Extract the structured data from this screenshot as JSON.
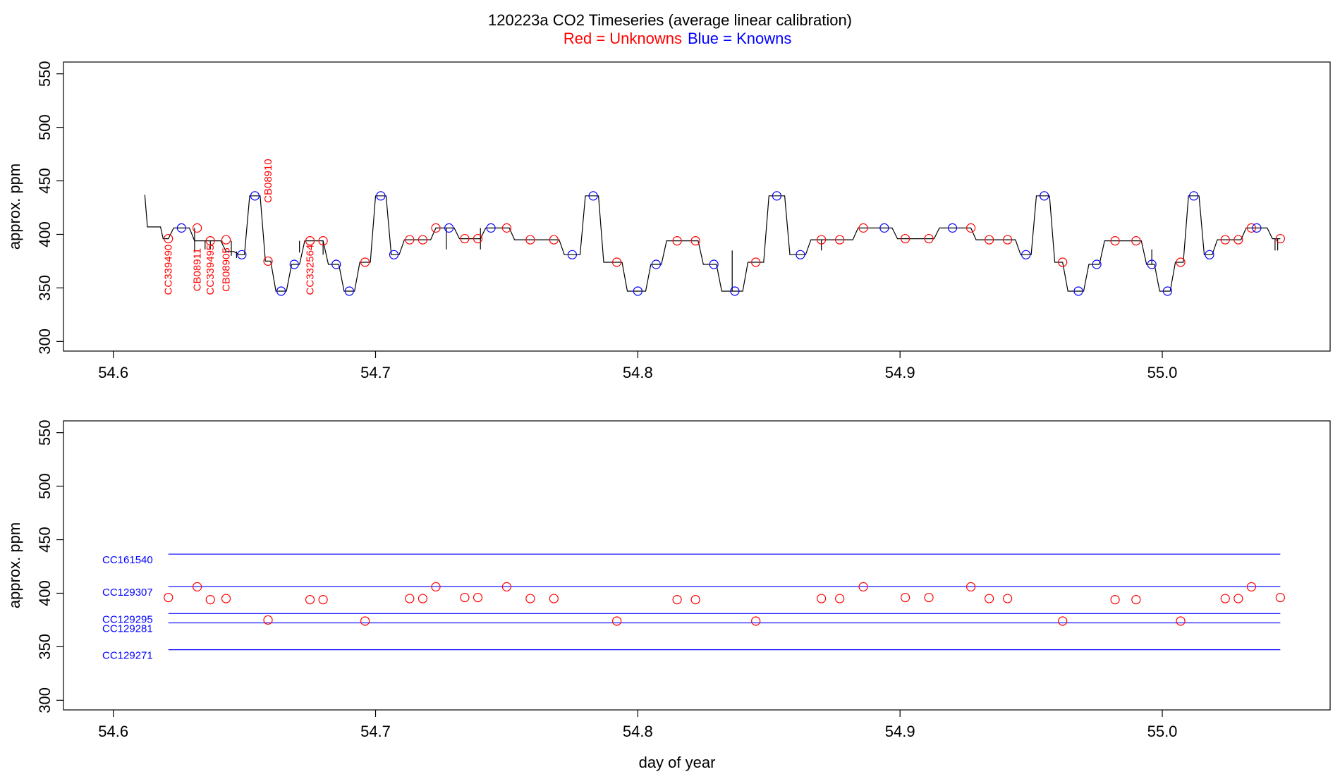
{
  "figure": {
    "title": "120223a   CO2 Timeseries (average linear calibration)",
    "subtitle_red": "Red = Unknowns",
    "subtitle_blue": "Blue = Knowns",
    "red_color": "#ff0000",
    "blue_color": "#0000ff"
  },
  "chart_data": [
    {
      "type": "line",
      "title": "",
      "xlabel": "",
      "ylabel": "approx. ppm",
      "xlim": [
        54.581,
        55.064
      ],
      "ylim": [
        291,
        561
      ],
      "x_ticks": [
        54.6,
        54.7,
        54.8,
        54.9,
        55.0
      ],
      "x_tick_labels": [
        "54.6",
        "54.7",
        "54.8",
        "54.9",
        "55.0"
      ],
      "y_ticks": [
        300,
        350,
        400,
        450,
        500,
        550
      ],
      "y_tick_labels": [
        "300",
        "350",
        "400",
        "450",
        "500",
        "550"
      ],
      "grid": false,
      "trace": {
        "name": "",
        "color": "#000000",
        "points": [
          [
            54.612,
            437
          ],
          [
            54.613,
            407
          ],
          [
            54.618,
            407
          ],
          [
            54.619,
            396
          ],
          [
            54.621,
            396
          ],
          [
            54.623,
            406
          ],
          [
            54.629,
            406
          ],
          [
            54.631,
            394
          ],
          [
            54.641,
            394
          ],
          [
            54.643,
            384
          ],
          [
            54.646,
            384
          ],
          [
            54.648,
            381
          ],
          [
            54.65,
            381
          ],
          [
            54.652,
            436
          ],
          [
            54.656,
            436
          ],
          [
            54.658,
            375
          ],
          [
            54.66,
            375
          ],
          [
            54.662,
            347
          ],
          [
            54.666,
            347
          ],
          [
            54.668,
            372
          ],
          [
            54.671,
            372
          ],
          [
            54.673,
            394
          ],
          [
            54.68,
            394
          ],
          [
            54.682,
            372
          ],
          [
            54.686,
            372
          ],
          [
            54.688,
            347
          ],
          [
            54.692,
            347
          ],
          [
            54.694,
            374
          ],
          [
            54.698,
            374
          ],
          [
            54.7,
            436
          ],
          [
            54.704,
            436
          ],
          [
            54.706,
            381
          ],
          [
            54.709,
            381
          ],
          [
            54.711,
            395
          ],
          [
            54.721,
            395
          ],
          [
            54.723,
            406
          ],
          [
            54.73,
            406
          ],
          [
            54.732,
            396
          ],
          [
            54.74,
            396
          ],
          [
            54.742,
            406
          ],
          [
            54.751,
            406
          ],
          [
            54.753,
            395
          ],
          [
            54.77,
            395
          ],
          [
            54.772,
            381
          ],
          [
            54.778,
            381
          ],
          [
            54.78,
            436
          ],
          [
            54.785,
            436
          ],
          [
            54.787,
            374
          ],
          [
            54.794,
            374
          ],
          [
            54.796,
            347
          ],
          [
            54.803,
            347
          ],
          [
            54.805,
            372
          ],
          [
            54.809,
            372
          ],
          [
            54.811,
            394
          ],
          [
            54.823,
            394
          ],
          [
            54.825,
            372
          ],
          [
            54.83,
            372
          ],
          [
            54.832,
            347
          ],
          [
            54.84,
            347
          ],
          [
            54.842,
            374
          ],
          [
            54.848,
            374
          ],
          [
            54.85,
            436
          ],
          [
            54.856,
            436
          ],
          [
            54.858,
            381
          ],
          [
            54.864,
            381
          ],
          [
            54.866,
            395
          ],
          [
            54.882,
            395
          ],
          [
            54.884,
            406
          ],
          [
            54.897,
            406
          ],
          [
            54.899,
            396
          ],
          [
            54.913,
            396
          ],
          [
            54.915,
            406
          ],
          [
            54.927,
            406
          ],
          [
            54.929,
            395
          ],
          [
            54.944,
            395
          ],
          [
            54.946,
            381
          ],
          [
            54.95,
            381
          ],
          [
            54.952,
            436
          ],
          [
            54.957,
            436
          ],
          [
            54.959,
            374
          ],
          [
            54.962,
            374
          ],
          [
            54.964,
            347
          ],
          [
            54.97,
            347
          ],
          [
            54.972,
            372
          ],
          [
            54.976,
            372
          ],
          [
            54.978,
            394
          ],
          [
            54.992,
            394
          ],
          [
            54.994,
            372
          ],
          [
            54.997,
            372
          ],
          [
            54.999,
            347
          ],
          [
            55.003,
            347
          ],
          [
            55.005,
            374
          ],
          [
            55.008,
            374
          ],
          [
            55.01,
            436
          ],
          [
            55.014,
            436
          ],
          [
            55.016,
            381
          ],
          [
            55.019,
            381
          ],
          [
            55.021,
            395
          ],
          [
            55.03,
            395
          ],
          [
            55.032,
            406
          ],
          [
            55.04,
            406
          ],
          [
            55.042,
            396
          ],
          [
            55.045,
            396
          ]
        ],
        "spikes": [
          [
            54.631,
            406,
            385
          ],
          [
            54.635,
            394,
            386
          ],
          [
            54.637,
            394,
            386
          ],
          [
            54.645,
            394,
            380
          ],
          [
            54.647,
            384,
            378
          ],
          [
            54.671,
            394,
            383
          ],
          [
            54.68,
            394,
            381
          ],
          [
            54.727,
            406,
            386
          ],
          [
            54.74,
            406,
            386
          ],
          [
            54.836,
            347,
            385
          ],
          [
            54.87,
            395,
            385
          ],
          [
            54.996,
            386,
            372
          ],
          [
            55.043,
            396,
            385
          ],
          [
            55.044,
            396,
            385
          ]
        ]
      },
      "unknowns": [
        [
          54.621,
          396
        ],
        [
          54.632,
          406
        ],
        [
          54.637,
          394
        ],
        [
          54.643,
          395
        ],
        [
          54.659,
          375
        ],
        [
          54.675,
          394
        ],
        [
          54.68,
          394
        ],
        [
          54.696,
          374
        ],
        [
          54.713,
          395
        ],
        [
          54.718,
          395
        ],
        [
          54.723,
          406
        ],
        [
          54.734,
          396
        ],
        [
          54.739,
          396
        ],
        [
          54.75,
          406
        ],
        [
          54.759,
          395
        ],
        [
          54.768,
          395
        ],
        [
          54.792,
          374
        ],
        [
          54.815,
          394
        ],
        [
          54.822,
          394
        ],
        [
          54.845,
          374
        ],
        [
          54.87,
          395
        ],
        [
          54.877,
          395
        ],
        [
          54.886,
          406
        ],
        [
          54.902,
          396
        ],
        [
          54.911,
          396
        ],
        [
          54.927,
          406
        ],
        [
          54.934,
          395
        ],
        [
          54.941,
          395
        ],
        [
          54.962,
          374
        ],
        [
          54.982,
          394
        ],
        [
          54.99,
          394
        ],
        [
          55.007,
          374
        ],
        [
          55.024,
          395
        ],
        [
          55.029,
          395
        ],
        [
          55.034,
          406
        ],
        [
          55.045,
          396
        ]
      ],
      "knowns": [
        [
          54.626,
          406
        ],
        [
          54.649,
          381
        ],
        [
          54.654,
          436
        ],
        [
          54.664,
          347
        ],
        [
          54.669,
          372
        ],
        [
          54.685,
          372
        ],
        [
          54.69,
          347
        ],
        [
          54.702,
          436
        ],
        [
          54.707,
          381
        ],
        [
          54.728,
          406
        ],
        [
          54.744,
          406
        ],
        [
          54.775,
          381
        ],
        [
          54.783,
          436
        ],
        [
          54.8,
          347
        ],
        [
          54.807,
          372
        ],
        [
          54.829,
          372
        ],
        [
          54.837,
          347
        ],
        [
          54.853,
          436
        ],
        [
          54.862,
          381
        ],
        [
          54.894,
          406
        ],
        [
          54.92,
          406
        ],
        [
          54.948,
          381
        ],
        [
          54.955,
          436
        ],
        [
          54.968,
          347
        ],
        [
          54.975,
          372
        ],
        [
          54.996,
          372
        ],
        [
          55.002,
          347
        ],
        [
          55.012,
          436
        ],
        [
          55.018,
          381
        ],
        [
          55.036,
          406
        ]
      ],
      "annotations": [
        {
          "label": "CC339490",
          "x": 54.621,
          "y": 367
        },
        {
          "label": "CB08911",
          "x": 54.632,
          "y": 367
        },
        {
          "label": "CC339495",
          "x": 54.637,
          "y": 367
        },
        {
          "label": "CB08905",
          "x": 54.643,
          "y": 367
        },
        {
          "label": "CB08910",
          "x": 54.659,
          "y": 450
        },
        {
          "label": "CC332564",
          "x": 54.675,
          "y": 367
        }
      ]
    },
    {
      "type": "scatter",
      "title": "",
      "xlabel": "day of year",
      "ylabel": "approx. ppm",
      "xlim": [
        54.581,
        55.064
      ],
      "ylim": [
        291,
        561
      ],
      "x_ticks": [
        54.6,
        54.7,
        54.8,
        54.9,
        55.0
      ],
      "x_tick_labels": [
        "54.6",
        "54.7",
        "54.8",
        "54.9",
        "55.0"
      ],
      "y_ticks": [
        300,
        350,
        400,
        450,
        500,
        550
      ],
      "y_tick_labels": [
        "300",
        "350",
        "400",
        "450",
        "500",
        "550"
      ],
      "grid": false,
      "reference_lines": [
        {
          "label": "CC161540",
          "y": 436.5
        },
        {
          "label": "CC129307",
          "y": 406.3
        },
        {
          "label": "CC129295",
          "y": 381.0
        },
        {
          "label": "CC129281",
          "y": 372.3
        },
        {
          "label": "CC129271",
          "y": 347.2
        }
      ],
      "reference_x_range": [
        54.621,
        55.045
      ],
      "unknowns": [
        [
          54.621,
          396
        ],
        [
          54.632,
          406
        ],
        [
          54.637,
          394
        ],
        [
          54.643,
          395
        ],
        [
          54.659,
          375
        ],
        [
          54.675,
          394
        ],
        [
          54.68,
          394
        ],
        [
          54.696,
          374
        ],
        [
          54.713,
          395
        ],
        [
          54.718,
          395
        ],
        [
          54.723,
          406
        ],
        [
          54.734,
          396
        ],
        [
          54.739,
          396
        ],
        [
          54.75,
          406
        ],
        [
          54.759,
          395
        ],
        [
          54.768,
          395
        ],
        [
          54.792,
          374
        ],
        [
          54.815,
          394
        ],
        [
          54.822,
          394
        ],
        [
          54.845,
          374
        ],
        [
          54.87,
          395
        ],
        [
          54.877,
          395
        ],
        [
          54.886,
          406
        ],
        [
          54.902,
          396
        ],
        [
          54.911,
          396
        ],
        [
          54.927,
          406
        ],
        [
          54.934,
          395
        ],
        [
          54.941,
          395
        ],
        [
          54.962,
          374
        ],
        [
          54.982,
          394
        ],
        [
          54.99,
          394
        ],
        [
          55.007,
          374
        ],
        [
          55.024,
          395
        ],
        [
          55.029,
          395
        ],
        [
          55.034,
          406
        ],
        [
          55.045,
          396
        ]
      ]
    }
  ]
}
